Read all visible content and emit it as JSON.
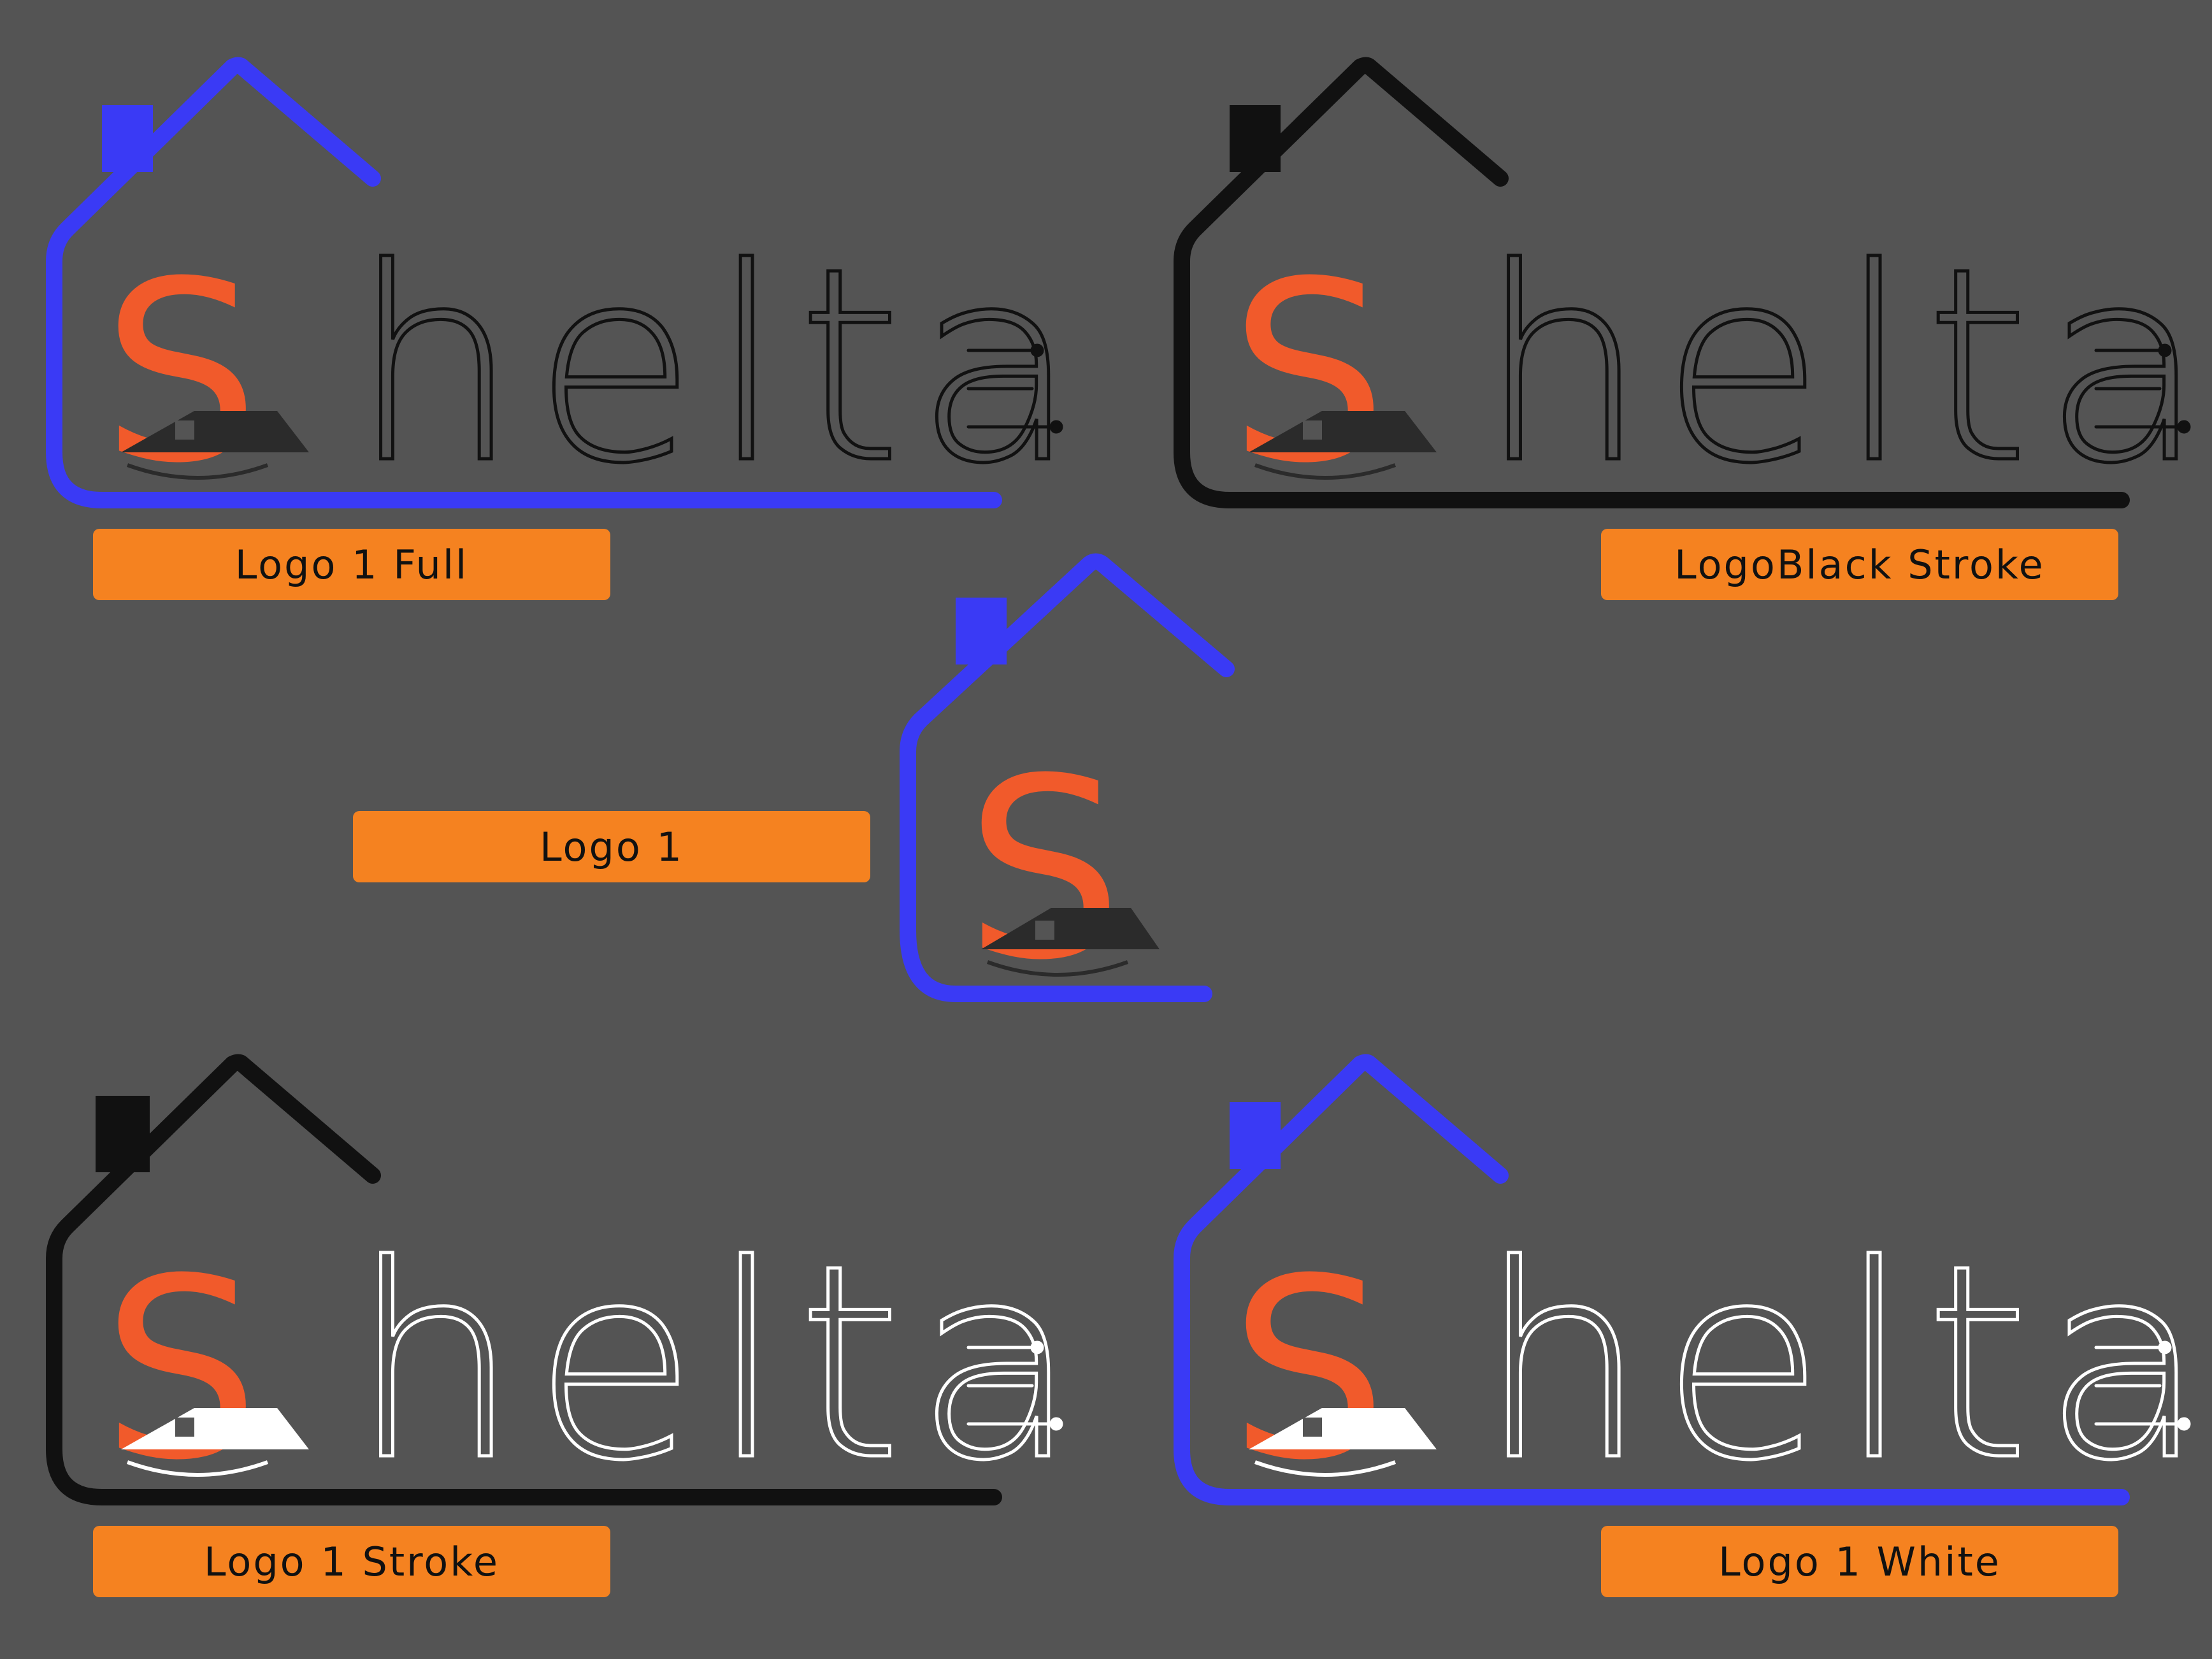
{
  "brand": {
    "mark_letter": "S",
    "word_rest": "helta"
  },
  "labels": {
    "full": "Logo 1 Full",
    "black_stroke": "LogoBlack Stroke",
    "mark_only": "Logo 1",
    "stroke": "Logo 1 Stroke",
    "white": "Logo 1 White"
  },
  "colors": {
    "background": "#545454",
    "house_blue": "#3a3af5",
    "house_black": "#111111",
    "s_orange": "#f15a2b",
    "label_orange": "#f58220",
    "outline_white": "#ffffff",
    "outline_black": "#111111",
    "mini_house_dark": "#2b2b2b",
    "mini_house_white": "#ffffff"
  },
  "variants": [
    {
      "id": "full",
      "house": "blue",
      "wordmark_outline": "black",
      "mini_house": "dark"
    },
    {
      "id": "black_stroke",
      "house": "black",
      "wordmark_outline": "black",
      "mini_house": "dark"
    },
    {
      "id": "mark_only",
      "house": "blue",
      "wordmark_outline": "none",
      "mini_house": "dark"
    },
    {
      "id": "stroke",
      "house": "black",
      "wordmark_outline": "white",
      "mini_house": "white"
    },
    {
      "id": "white",
      "house": "blue",
      "wordmark_outline": "white",
      "mini_house": "white"
    }
  ]
}
